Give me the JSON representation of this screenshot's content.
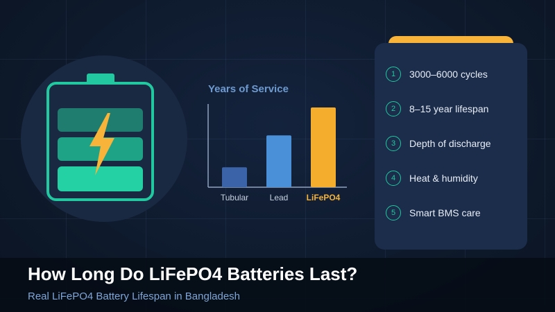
{
  "colors": {
    "accent_teal": "#22c9a0",
    "accent_orange": "#f7b33a",
    "bar_tubular": "#3a63a8",
    "bar_lead": "#4a90d9",
    "bar_lifepo4": "#f5ad2e"
  },
  "battery": {
    "icon": "battery-charging-icon"
  },
  "chart_data": {
    "type": "bar",
    "title": "Years of Service",
    "categories": [
      "Tubular",
      "Lead",
      "LiFePO4"
    ],
    "values": [
      2.5,
      6.5,
      10
    ],
    "highlight": "LiFePO4",
    "ylim": [
      0,
      12
    ],
    "xlabel": "",
    "ylabel": "",
    "grid": false
  },
  "features": [
    {
      "num": "1",
      "label": "3000–6000 cycles"
    },
    {
      "num": "2",
      "label": "8–15 year lifespan"
    },
    {
      "num": "3",
      "label": "Depth of discharge"
    },
    {
      "num": "4",
      "label": "Heat & humidity"
    },
    {
      "num": "5",
      "label": "Smart BMS care"
    }
  ],
  "footer": {
    "title": "How Long Do LiFePO4 Batteries Last?",
    "subtitle": "Real LiFePO4 Battery Lifespan in Bangladesh"
  }
}
